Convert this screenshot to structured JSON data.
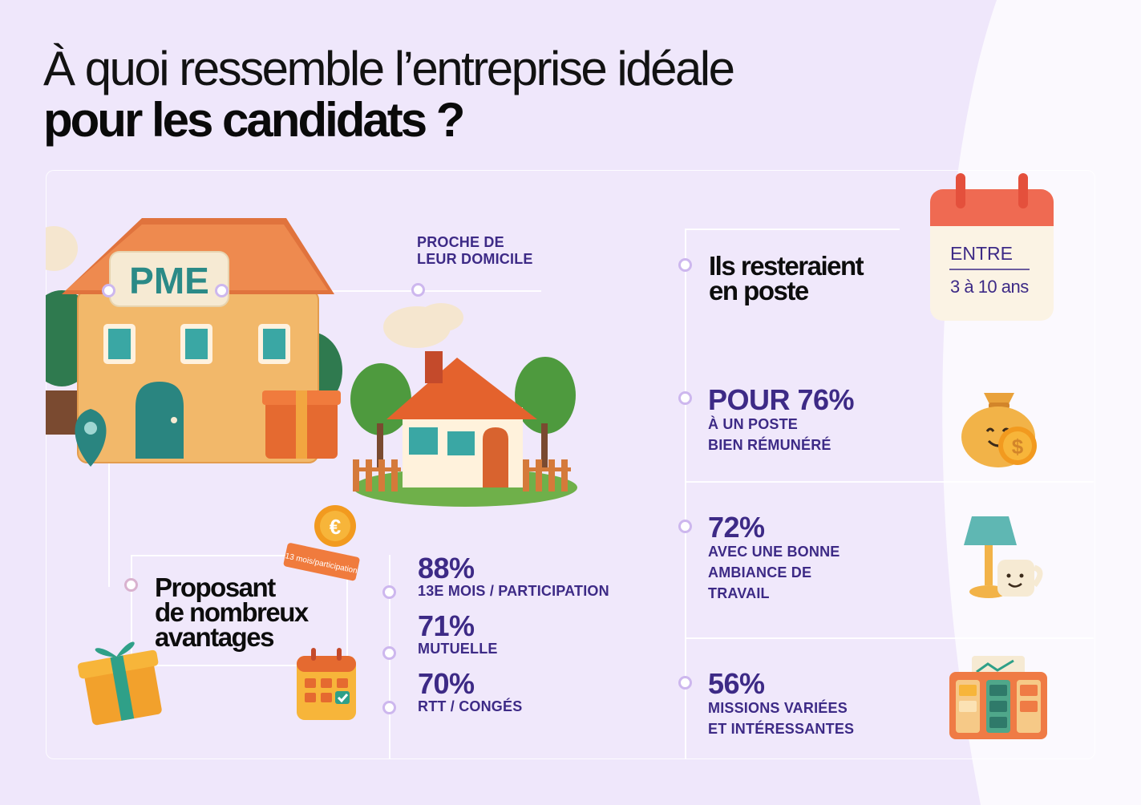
{
  "title": {
    "line1": "À quoi ressemble l’entreprise idéale",
    "line2": "pour les candidats ?"
  },
  "pme": {
    "house_sign": "PME",
    "proche_line1": "PROCHE DE",
    "proche_line2": "LEUR DOMICILE"
  },
  "avantages": {
    "headline_line1": "Proposant",
    "headline_line2": "de nombreux",
    "headline_line3": "avantages",
    "stamp_text": "13 mois/participation",
    "items": [
      {
        "pct": "88%",
        "label": "13E MOIS / PARTICIPATION"
      },
      {
        "pct": "71%",
        "label": "MUTUELLE"
      },
      {
        "pct": "70%",
        "label": "RTT / CONGÉS"
      }
    ]
  },
  "poste": {
    "headline_line1": "Ils resteraient",
    "headline_line2": "en poste",
    "calendar_line1": "ENTRE",
    "calendar_line2": "3 à 10 ans"
  },
  "right_items": [
    {
      "pct": "POUR 76%",
      "line1": "À UN POSTE",
      "line2": "BIEN RÉMUNÉRÉ",
      "line3": "",
      "icon": "money-bag-icon"
    },
    {
      "pct": "72%",
      "line1": "AVEC UNE BONNE",
      "line2": "AMBIANCE DE",
      "line3": "TRAVAIL",
      "icon": "lamp-mug-icon"
    },
    {
      "pct": "56%",
      "line1": "MISSIONS VARIÉES",
      "line2": "ET INTÉRESSANTES",
      "line3": "",
      "icon": "kanban-board-icon"
    }
  ],
  "colors": {
    "background": "#efe7fb",
    "accent_purple": "#3d2a86",
    "dot_ring": "#cdb7ee"
  }
}
